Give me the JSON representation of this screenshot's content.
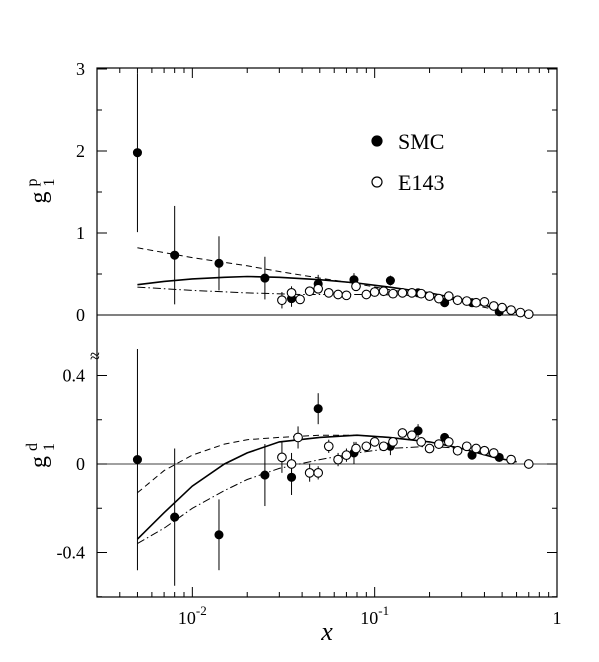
{
  "chart_data": {
    "type": "scatter",
    "x_scale": "log",
    "xlim": [
      0.003,
      1
    ],
    "xlabel": "x",
    "x_ticks": [
      {
        "value": 0.01,
        "base": "10",
        "exp": "-2"
      },
      {
        "value": 0.1,
        "base": "10",
        "exp": "-1"
      },
      {
        "value": 1,
        "base": "1",
        "exp": ""
      }
    ],
    "legend": {
      "placement": "upper panel, right",
      "entries": [
        {
          "label": "SMC",
          "marker": "filled-circle"
        },
        {
          "label": "E143",
          "marker": "open-circle"
        }
      ]
    },
    "axis_break_mark": "≈",
    "panels": [
      {
        "id": "g1p",
        "ylabel": {
          "main": "g",
          "sub": "1",
          "sup": "p"
        },
        "ylim": [
          0,
          3
        ],
        "y_ticks": [
          {
            "value": 0,
            "label": "0"
          },
          {
            "value": 1,
            "label": "1"
          },
          {
            "value": 2,
            "label": "2"
          },
          {
            "value": 3,
            "label": "3"
          }
        ],
        "series": [
          {
            "name": "SMC",
            "marker": "filled",
            "points": [
              {
                "x": 0.005,
                "y": 1.98,
                "err": 0.97
              },
              {
                "x": 0.008,
                "y": 0.73,
                "err": 0.6
              },
              {
                "x": 0.014,
                "y": 0.63,
                "err": 0.33
              },
              {
                "x": 0.025,
                "y": 0.45,
                "err": 0.26
              },
              {
                "x": 0.035,
                "y": 0.2,
                "err": 0.1
              },
              {
                "x": 0.049,
                "y": 0.38,
                "err": 0.11
              },
              {
                "x": 0.077,
                "y": 0.43,
                "err": 0.08
              },
              {
                "x": 0.122,
                "y": 0.42,
                "err": 0.06
              },
              {
                "x": 0.173,
                "y": 0.27,
                "err": 0.05
              },
              {
                "x": 0.242,
                "y": 0.15,
                "err": 0.04
              },
              {
                "x": 0.342,
                "y": 0.15,
                "err": 0.04
              },
              {
                "x": 0.482,
                "y": 0.04,
                "err": 0.03
              }
            ]
          },
          {
            "name": "E143",
            "marker": "open",
            "points": [
              {
                "x": 0.031,
                "y": 0.18,
                "err": 0.1
              },
              {
                "x": 0.035,
                "y": 0.27,
                "err": 0.08
              },
              {
                "x": 0.039,
                "y": 0.19,
                "err": 0.05
              },
              {
                "x": 0.044,
                "y": 0.29,
                "err": 0.05
              },
              {
                "x": 0.049,
                "y": 0.32,
                "err": 0.05
              },
              {
                "x": 0.056,
                "y": 0.27,
                "err": 0.04
              },
              {
                "x": 0.063,
                "y": 0.25,
                "err": 0.04
              },
              {
                "x": 0.07,
                "y": 0.24,
                "err": 0.04
              },
              {
                "x": 0.079,
                "y": 0.35,
                "err": 0.04
              },
              {
                "x": 0.09,
                "y": 0.25,
                "err": 0.03
              },
              {
                "x": 0.1,
                "y": 0.28,
                "err": 0.03
              },
              {
                "x": 0.112,
                "y": 0.29,
                "err": 0.03
              },
              {
                "x": 0.126,
                "y": 0.26,
                "err": 0.03
              },
              {
                "x": 0.142,
                "y": 0.27,
                "err": 0.03
              },
              {
                "x": 0.16,
                "y": 0.27,
                "err": 0.03
              },
              {
                "x": 0.18,
                "y": 0.26,
                "err": 0.03
              },
              {
                "x": 0.2,
                "y": 0.23,
                "err": 0.02
              },
              {
                "x": 0.225,
                "y": 0.2,
                "err": 0.02
              },
              {
                "x": 0.255,
                "y": 0.23,
                "err": 0.02
              },
              {
                "x": 0.285,
                "y": 0.18,
                "err": 0.02
              },
              {
                "x": 0.32,
                "y": 0.17,
                "err": 0.02
              },
              {
                "x": 0.36,
                "y": 0.15,
                "err": 0.02
              },
              {
                "x": 0.4,
                "y": 0.16,
                "err": 0.02
              },
              {
                "x": 0.45,
                "y": 0.11,
                "err": 0.02
              },
              {
                "x": 0.5,
                "y": 0.09,
                "err": 0.02
              },
              {
                "x": 0.56,
                "y": 0.06,
                "err": 0.02
              },
              {
                "x": 0.63,
                "y": 0.03,
                "err": 0.02
              },
              {
                "x": 0.7,
                "y": 0.01,
                "err": 0.01
              }
            ]
          }
        ],
        "curves": [
          {
            "style": "solid",
            "points": [
              [
                0.005,
                0.37
              ],
              [
                0.007,
                0.41
              ],
              [
                0.01,
                0.44
              ],
              [
                0.015,
                0.46
              ],
              [
                0.02,
                0.47
              ],
              [
                0.03,
                0.46
              ],
              [
                0.05,
                0.43
              ],
              [
                0.08,
                0.39
              ],
              [
                0.12,
                0.34
              ],
              [
                0.2,
                0.27
              ],
              [
                0.3,
                0.19
              ],
              [
                0.45,
                0.09
              ],
              [
                0.6,
                0.03
              ]
            ]
          },
          {
            "style": "dashed",
            "points": [
              [
                0.005,
                0.82
              ],
              [
                0.01,
                0.7
              ],
              [
                0.02,
                0.6
              ],
              [
                0.03,
                0.53
              ],
              [
                0.05,
                0.45
              ],
              [
                0.08,
                0.38
              ],
              [
                0.12,
                0.31
              ],
              [
                0.2,
                0.23
              ],
              [
                0.3,
                0.15
              ],
              [
                0.45,
                0.07
              ]
            ]
          },
          {
            "style": "dashdot",
            "points": [
              [
                0.005,
                0.34
              ],
              [
                0.01,
                0.3
              ],
              [
                0.02,
                0.27
              ],
              [
                0.04,
                0.25
              ],
              [
                0.07,
                0.25
              ],
              [
                0.1,
                0.25
              ],
              [
                0.15,
                0.24
              ],
              [
                0.25,
                0.2
              ],
              [
                0.35,
                0.14
              ],
              [
                0.5,
                0.06
              ]
            ]
          }
        ]
      },
      {
        "id": "g1d",
        "ylabel": {
          "main": "g",
          "sub": "1",
          "sup": "d"
        },
        "ylim": [
          -0.6,
          0.55
        ],
        "y_ticks": [
          {
            "value": 0.4,
            "label": "0.4"
          },
          {
            "value": 0,
            "label": "0"
          },
          {
            "value": -0.4,
            "label": "-0.4"
          }
        ],
        "series": [
          {
            "name": "SMC",
            "marker": "filled",
            "points": [
              {
                "x": 0.005,
                "y": 0.02,
                "err": 0.5
              },
              {
                "x": 0.008,
                "y": -0.24,
                "err": 0.31
              },
              {
                "x": 0.014,
                "y": -0.32,
                "err": 0.16
              },
              {
                "x": 0.025,
                "y": -0.05,
                "err": 0.14
              },
              {
                "x": 0.035,
                "y": -0.06,
                "err": 0.08
              },
              {
                "x": 0.049,
                "y": 0.25,
                "err": 0.07
              },
              {
                "x": 0.077,
                "y": 0.05,
                "err": 0.05
              },
              {
                "x": 0.122,
                "y": 0.08,
                "err": 0.04
              },
              {
                "x": 0.173,
                "y": 0.15,
                "err": 0.03
              },
              {
                "x": 0.242,
                "y": 0.12,
                "err": 0.02
              },
              {
                "x": 0.342,
                "y": 0.04,
                "err": 0.02
              },
              {
                "x": 0.482,
                "y": 0.03,
                "err": 0.02
              }
            ]
          },
          {
            "name": "E143",
            "marker": "open",
            "points": [
              {
                "x": 0.031,
                "y": 0.03,
                "err": 0.07
              },
              {
                "x": 0.035,
                "y": 0.0,
                "err": 0.05
              },
              {
                "x": 0.038,
                "y": 0.12,
                "err": 0.05
              },
              {
                "x": 0.044,
                "y": -0.04,
                "err": 0.04
              },
              {
                "x": 0.049,
                "y": -0.04,
                "err": 0.03
              },
              {
                "x": 0.056,
                "y": 0.08,
                "err": 0.03
              },
              {
                "x": 0.063,
                "y": 0.02,
                "err": 0.03
              },
              {
                "x": 0.07,
                "y": 0.04,
                "err": 0.03
              },
              {
                "x": 0.079,
                "y": 0.07,
                "err": 0.03
              },
              {
                "x": 0.09,
                "y": 0.08,
                "err": 0.02
              },
              {
                "x": 0.1,
                "y": 0.1,
                "err": 0.02
              },
              {
                "x": 0.112,
                "y": 0.08,
                "err": 0.02
              },
              {
                "x": 0.126,
                "y": 0.1,
                "err": 0.02
              },
              {
                "x": 0.142,
                "y": 0.14,
                "err": 0.02
              },
              {
                "x": 0.16,
                "y": 0.13,
                "err": 0.02
              },
              {
                "x": 0.18,
                "y": 0.1,
                "err": 0.02
              },
              {
                "x": 0.2,
                "y": 0.07,
                "err": 0.02
              },
              {
                "x": 0.225,
                "y": 0.09,
                "err": 0.02
              },
              {
                "x": 0.255,
                "y": 0.1,
                "err": 0.02
              },
              {
                "x": 0.285,
                "y": 0.06,
                "err": 0.02
              },
              {
                "x": 0.32,
                "y": 0.08,
                "err": 0.02
              },
              {
                "x": 0.36,
                "y": 0.07,
                "err": 0.02
              },
              {
                "x": 0.4,
                "y": 0.06,
                "err": 0.02
              },
              {
                "x": 0.45,
                "y": 0.05,
                "err": 0.01
              },
              {
                "x": 0.56,
                "y": 0.02,
                "err": 0.01
              },
              {
                "x": 0.7,
                "y": 0.0,
                "err": 0.01
              }
            ]
          }
        ],
        "curves": [
          {
            "style": "solid",
            "points": [
              [
                0.005,
                -0.34
              ],
              [
                0.007,
                -0.22
              ],
              [
                0.01,
                -0.1
              ],
              [
                0.015,
                0.0
              ],
              [
                0.02,
                0.05
              ],
              [
                0.03,
                0.1
              ],
              [
                0.05,
                0.12
              ],
              [
                0.08,
                0.13
              ],
              [
                0.12,
                0.12
              ],
              [
                0.2,
                0.1
              ],
              [
                0.3,
                0.07
              ],
              [
                0.45,
                0.03
              ],
              [
                0.6,
                0.01
              ]
            ]
          },
          {
            "style": "dashed",
            "points": [
              [
                0.005,
                -0.13
              ],
              [
                0.007,
                -0.03
              ],
              [
                0.01,
                0.04
              ],
              [
                0.015,
                0.09
              ],
              [
                0.02,
                0.11
              ],
              [
                0.03,
                0.12
              ],
              [
                0.05,
                0.13
              ],
              [
                0.08,
                0.13
              ],
              [
                0.12,
                0.12
              ],
              [
                0.2,
                0.1
              ],
              [
                0.3,
                0.07
              ],
              [
                0.45,
                0.04
              ]
            ]
          },
          {
            "style": "dashdot",
            "points": [
              [
                0.005,
                -0.36
              ],
              [
                0.007,
                -0.29
              ],
              [
                0.01,
                -0.2
              ],
              [
                0.015,
                -0.12
              ],
              [
                0.02,
                -0.07
              ],
              [
                0.03,
                -0.02
              ],
              [
                0.05,
                0.02
              ],
              [
                0.08,
                0.05
              ],
              [
                0.12,
                0.07
              ],
              [
                0.2,
                0.08
              ],
              [
                0.3,
                0.07
              ],
              [
                0.45,
                0.04
              ]
            ]
          }
        ]
      }
    ]
  }
}
